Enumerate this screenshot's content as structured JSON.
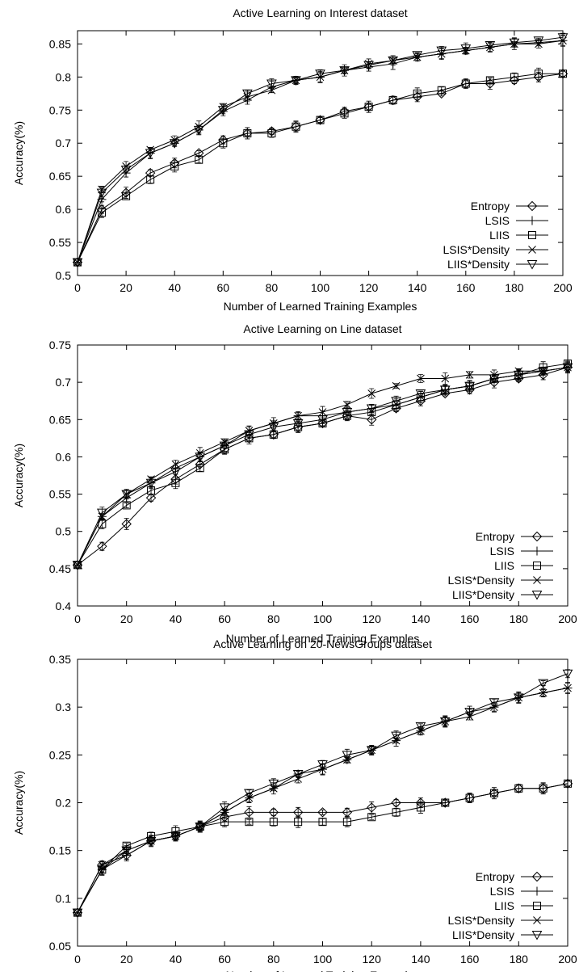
{
  "chart_data": [
    {
      "type": "line",
      "title": "Active Learning on Interest dataset",
      "xlabel": "Number of Learned Training Examples",
      "ylabel": "Accuracy(%)",
      "xlim": [
        0,
        200
      ],
      "ylim": [
        0.5,
        0.87
      ],
      "xticks": [
        0,
        20,
        40,
        60,
        80,
        100,
        120,
        140,
        160,
        180,
        200
      ],
      "yticks": [
        0.5,
        0.55,
        0.6,
        0.65,
        0.7,
        0.75,
        0.8,
        0.85
      ],
      "xtick_labels": [
        "0",
        "20",
        "40",
        "60",
        "80",
        "100",
        "120",
        "140",
        "160",
        "180",
        "200"
      ],
      "ytick_labels": [
        "0.5",
        "0.55",
        "0.6",
        "0.65",
        "0.7",
        "0.75",
        "0.8",
        "0.85"
      ],
      "grid": false,
      "legend_position": "bottom-right",
      "error_bars": true,
      "x": [
        0,
        10,
        20,
        30,
        40,
        50,
        60,
        70,
        80,
        90,
        100,
        110,
        120,
        130,
        140,
        150,
        160,
        170,
        180,
        190,
        200
      ],
      "series": [
        {
          "name": "Entropy",
          "marker": "diamond",
          "values": [
            0.52,
            0.6,
            0.625,
            0.655,
            0.67,
            0.685,
            0.705,
            0.715,
            0.718,
            0.725,
            0.735,
            0.748,
            0.755,
            0.765,
            0.77,
            0.775,
            0.79,
            0.79,
            0.795,
            0.8,
            0.805
          ]
        },
        {
          "name": "LSIS",
          "marker": "plus",
          "values": [
            0.52,
            0.615,
            0.655,
            0.685,
            0.7,
            0.72,
            0.748,
            0.765,
            0.785,
            0.795,
            0.8,
            0.81,
            0.815,
            0.82,
            0.83,
            0.835,
            0.84,
            0.845,
            0.85,
            0.852,
            0.855
          ]
        },
        {
          "name": "LIIS",
          "marker": "square",
          "values": [
            0.52,
            0.595,
            0.62,
            0.645,
            0.665,
            0.675,
            0.7,
            0.715,
            0.715,
            0.725,
            0.735,
            0.745,
            0.755,
            0.765,
            0.775,
            0.78,
            0.79,
            0.795,
            0.8,
            0.805,
            0.805
          ]
        },
        {
          "name": "LSIS*Density",
          "marker": "x",
          "values": [
            0.52,
            0.63,
            0.665,
            0.69,
            0.705,
            0.725,
            0.755,
            0.77,
            0.78,
            0.795,
            0.8,
            0.81,
            0.82,
            0.825,
            0.83,
            0.835,
            0.84,
            0.845,
            0.85,
            0.85,
            0.855
          ]
        },
        {
          "name": "LIIS*Density",
          "marker": "triangle-down",
          "values": [
            0.52,
            0.625,
            0.66,
            0.685,
            0.7,
            0.72,
            0.75,
            0.775,
            0.79,
            0.795,
            0.805,
            0.81,
            0.818,
            0.825,
            0.833,
            0.84,
            0.843,
            0.848,
            0.852,
            0.855,
            0.86
          ]
        }
      ]
    },
    {
      "type": "line",
      "title": "Active Learning on Line dataset",
      "xlabel": "Number of Learned Training Examples",
      "ylabel": "Accuracy(%)",
      "xlim": [
        0,
        200
      ],
      "ylim": [
        0.4,
        0.75
      ],
      "xticks": [
        0,
        20,
        40,
        60,
        80,
        100,
        120,
        140,
        160,
        180,
        200
      ],
      "yticks": [
        0.4,
        0.45,
        0.5,
        0.55,
        0.6,
        0.65,
        0.7,
        0.75
      ],
      "xtick_labels": [
        "0",
        "20",
        "40",
        "60",
        "80",
        "100",
        "120",
        "140",
        "160",
        "180",
        "200"
      ],
      "ytick_labels": [
        "0.4",
        "0.45",
        "0.5",
        "0.55",
        "0.6",
        "0.65",
        "0.7",
        "0.75"
      ],
      "grid": false,
      "legend_position": "bottom-right",
      "error_bars": true,
      "x": [
        0,
        10,
        20,
        30,
        40,
        50,
        60,
        70,
        80,
        90,
        100,
        110,
        120,
        130,
        140,
        150,
        160,
        170,
        180,
        190,
        200
      ],
      "series": [
        {
          "name": "Entropy",
          "marker": "diamond",
          "values": [
            0.455,
            0.48,
            0.51,
            0.545,
            0.57,
            0.59,
            0.61,
            0.625,
            0.63,
            0.64,
            0.645,
            0.655,
            0.65,
            0.665,
            0.675,
            0.685,
            0.69,
            0.7,
            0.705,
            0.71,
            0.72
          ]
        },
        {
          "name": "LSIS",
          "marker": "plus",
          "values": [
            0.455,
            0.52,
            0.545,
            0.565,
            0.585,
            0.6,
            0.615,
            0.635,
            0.645,
            0.655,
            0.655,
            0.66,
            0.665,
            0.67,
            0.68,
            0.69,
            0.695,
            0.705,
            0.71,
            0.715,
            0.72
          ]
        },
        {
          "name": "LIIS",
          "marker": "square",
          "values": [
            0.455,
            0.51,
            0.535,
            0.555,
            0.565,
            0.585,
            0.61,
            0.625,
            0.63,
            0.64,
            0.645,
            0.655,
            0.66,
            0.67,
            0.68,
            0.69,
            0.695,
            0.705,
            0.71,
            0.72,
            0.725
          ]
        },
        {
          "name": "LSIS*Density",
          "marker": "x",
          "values": [
            0.455,
            0.52,
            0.55,
            0.57,
            0.59,
            0.605,
            0.62,
            0.635,
            0.645,
            0.655,
            0.66,
            0.67,
            0.685,
            0.695,
            0.705,
            0.705,
            0.71,
            0.71,
            0.715,
            0.715,
            0.72
          ]
        },
        {
          "name": "LIIS*Density",
          "marker": "triangle-down",
          "values": [
            0.455,
            0.525,
            0.55,
            0.565,
            0.58,
            0.6,
            0.615,
            0.63,
            0.64,
            0.645,
            0.65,
            0.66,
            0.665,
            0.675,
            0.685,
            0.69,
            0.695,
            0.705,
            0.71,
            0.715,
            0.72
          ]
        }
      ]
    },
    {
      "type": "line",
      "title": "Active Learning on 20-NewsGroups dataset",
      "xlabel": "Number of Learned Training Examples",
      "ylabel": "Accuracy(%)",
      "xlim": [
        0,
        200
      ],
      "ylim": [
        0.05,
        0.35
      ],
      "xticks": [
        0,
        20,
        40,
        60,
        80,
        100,
        120,
        140,
        160,
        180,
        200
      ],
      "yticks": [
        0.05,
        0.1,
        0.15,
        0.2,
        0.25,
        0.3,
        0.35
      ],
      "xtick_labels": [
        "0",
        "20",
        "40",
        "60",
        "80",
        "100",
        "120",
        "140",
        "160",
        "180",
        "200"
      ],
      "ytick_labels": [
        "0.05",
        "0.1",
        "0.15",
        "0.2",
        "0.25",
        "0.3",
        "0.35"
      ],
      "grid": false,
      "legend_position": "bottom-right",
      "error_bars": true,
      "x": [
        0,
        10,
        20,
        30,
        40,
        50,
        60,
        70,
        80,
        90,
        100,
        110,
        120,
        130,
        140,
        150,
        160,
        170,
        180,
        190,
        200
      ],
      "series": [
        {
          "name": "Entropy",
          "marker": "diamond",
          "values": [
            0.085,
            0.135,
            0.145,
            0.16,
            0.165,
            0.175,
            0.185,
            0.19,
            0.19,
            0.19,
            0.19,
            0.19,
            0.195,
            0.2,
            0.2,
            0.2,
            0.205,
            0.21,
            0.215,
            0.215,
            0.22
          ]
        },
        {
          "name": "LSIS",
          "marker": "plus",
          "values": [
            0.085,
            0.13,
            0.145,
            0.16,
            0.165,
            0.175,
            0.19,
            0.205,
            0.215,
            0.23,
            0.235,
            0.245,
            0.255,
            0.265,
            0.275,
            0.285,
            0.295,
            0.3,
            0.31,
            0.315,
            0.32
          ]
        },
        {
          "name": "LIIS",
          "marker": "square",
          "values": [
            0.085,
            0.13,
            0.155,
            0.165,
            0.17,
            0.175,
            0.18,
            0.18,
            0.18,
            0.18,
            0.18,
            0.18,
            0.185,
            0.19,
            0.195,
            0.2,
            0.205,
            0.21,
            0.215,
            0.215,
            0.22
          ]
        },
        {
          "name": "LSIS*Density",
          "marker": "x",
          "values": [
            0.085,
            0.135,
            0.15,
            0.16,
            0.165,
            0.175,
            0.19,
            0.205,
            0.215,
            0.225,
            0.235,
            0.245,
            0.255,
            0.265,
            0.275,
            0.285,
            0.29,
            0.3,
            0.31,
            0.315,
            0.32
          ]
        },
        {
          "name": "LIIS*Density",
          "marker": "triangle-down",
          "values": [
            0.085,
            0.13,
            0.15,
            0.16,
            0.165,
            0.175,
            0.195,
            0.21,
            0.22,
            0.23,
            0.24,
            0.25,
            0.255,
            0.27,
            0.28,
            0.285,
            0.295,
            0.305,
            0.31,
            0.325,
            0.335
          ]
        }
      ]
    }
  ]
}
